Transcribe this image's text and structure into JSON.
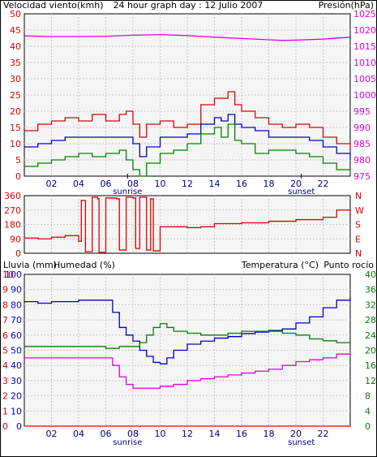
{
  "header": {
    "title": "24 hour graph day : 12 Julio 2007",
    "left_label": "Velocidad viento(kmh)",
    "right_label": "Presión(hPa)"
  },
  "colors": {
    "bg": "#f5f5f5",
    "grid": "#c8c8c8",
    "frame": "#000000",
    "wind_max": "#e00000",
    "wind_avg": "#0000c8",
    "wind_min": "#008000",
    "pressure": "#e000e0",
    "direction": "#e00000",
    "humidity": "#0000c8",
    "temperature": "#008000",
    "dewpoint": "#e000e0",
    "rain": "#e00000"
  },
  "x_ticks": [
    "02",
    "04",
    "06",
    "08",
    "10",
    "12",
    "14",
    "16",
    "18",
    "20",
    "22"
  ],
  "markers": {
    "sunrise": "sunrise",
    "sunset": "sunset",
    "sunrise_hour": 7.6,
    "sunset_hour": 20.4
  },
  "chart_data": [
    {
      "type": "line",
      "panel": "wind_pressure",
      "x_range": [
        0,
        24
      ],
      "ylim_left": [
        0,
        50
      ],
      "ylim_right": [
        975,
        1025
      ],
      "left_ticks": [
        "50",
        "45",
        "40",
        "35",
        "30",
        "25",
        "20",
        "15",
        "10",
        "5",
        "0"
      ],
      "right_ticks": [
        "1025",
        "1020",
        "1015",
        "1010",
        "1005",
        "1000",
        "995",
        "990",
        "985",
        "980",
        "975"
      ],
      "series": [
        {
          "key": "wind_max",
          "axis": "left",
          "x": [
            0,
            1,
            2,
            3,
            4,
            5,
            6,
            7,
            7.5,
            8,
            8.5,
            9,
            10,
            11,
            12,
            13,
            14,
            14.5,
            15,
            15.5,
            16,
            17,
            18,
            19,
            20,
            21,
            22,
            23,
            24
          ],
          "values": [
            14,
            16,
            17,
            18,
            17,
            19,
            17,
            19,
            20,
            16,
            12,
            16,
            17,
            15,
            16,
            22,
            24,
            24,
            26,
            22,
            20,
            18,
            16,
            15,
            16,
            15,
            12,
            10,
            8
          ]
        },
        {
          "key": "wind_avg",
          "axis": "left",
          "x": [
            0,
            1,
            2,
            3,
            4,
            5,
            6,
            7,
            7.5,
            8,
            8.5,
            9,
            10,
            11,
            12,
            13,
            14,
            14.5,
            15,
            15.5,
            16,
            17,
            18,
            19,
            20,
            21,
            22,
            23,
            24
          ],
          "values": [
            9,
            10,
            11,
            12,
            12,
            12,
            12,
            12,
            12,
            10,
            6,
            9,
            12,
            12,
            13,
            16,
            18,
            17,
            19,
            16,
            15,
            14,
            12,
            12,
            12,
            11,
            9,
            7,
            5
          ]
        },
        {
          "key": "wind_min",
          "axis": "left",
          "x": [
            0,
            1,
            2,
            3,
            4,
            5,
            6,
            7,
            7.5,
            8,
            8.5,
            9,
            10,
            11,
            12,
            13,
            14,
            14.5,
            15,
            15.5,
            16,
            17,
            18,
            19,
            20,
            21,
            22,
            23,
            24
          ],
          "values": [
            3,
            4,
            5,
            6,
            7,
            6,
            7,
            8,
            5,
            2,
            0,
            4,
            7,
            8,
            10,
            13,
            15,
            12,
            16,
            11,
            10,
            7,
            8,
            8,
            7,
            6,
            4,
            2,
            1
          ]
        },
        {
          "key": "pressure",
          "axis": "right",
          "x": [
            0,
            2,
            4,
            6,
            8,
            10,
            12,
            14,
            16,
            18,
            19,
            20,
            22,
            24
          ],
          "values": [
            1018.2,
            1018.0,
            1018.0,
            1018.1,
            1018.4,
            1018.6,
            1018.3,
            1017.8,
            1017.4,
            1017.0,
            1016.8,
            1016.9,
            1017.2,
            1017.8
          ]
        }
      ]
    },
    {
      "type": "line",
      "panel": "wind_direction",
      "x_range": [
        0,
        24
      ],
      "ylim": [
        0,
        360
      ],
      "left_ticks": [
        "360",
        "270",
        "180",
        "90",
        "0"
      ],
      "right_ticks": [
        "N",
        "W",
        "S",
        "E",
        "N"
      ],
      "series": [
        {
          "key": "direction",
          "x": [
            0,
            1,
            2,
            3,
            4,
            4.2,
            4.5,
            5,
            5.4,
            5.5,
            6,
            6.8,
            7,
            7.5,
            8,
            8.2,
            8.5,
            9,
            9.3,
            9.5,
            10,
            12,
            13,
            14,
            16,
            18,
            20,
            22,
            23,
            24
          ],
          "values": [
            95,
            90,
            100,
            110,
            75,
            330,
            10,
            350,
            340,
            5,
            345,
            340,
            20,
            350,
            345,
            30,
            350,
            20,
            340,
            15,
            165,
            160,
            165,
            185,
            190,
            200,
            210,
            225,
            270,
            245
          ]
        }
      ]
    },
    {
      "type": "line",
      "panel": "rain_humidity_temp",
      "x_range": [
        0,
        24
      ],
      "ylim_left_rain": [
        0,
        10
      ],
      "ylim_left_humidity": [
        0,
        100
      ],
      "ylim_right": [
        0,
        40
      ],
      "left_ticks_rain": [
        "10",
        "9",
        "8",
        "7",
        "6",
        "5",
        "4",
        "3",
        "2",
        "1",
        "0"
      ],
      "left_ticks_humidity": [
        "100",
        "90",
        "80",
        "70",
        "60",
        "50",
        "40",
        "30",
        "20",
        "10",
        "0"
      ],
      "right_ticks": [
        "40",
        "36",
        "32",
        "28",
        "24",
        "20",
        "16",
        "12",
        "8",
        "4",
        "0"
      ],
      "series": [
        {
          "key": "humidity",
          "axis": "left",
          "x": [
            0,
            1,
            2,
            3,
            4,
            5,
            6,
            6.5,
            7,
            7.5,
            8,
            8.5,
            9,
            9.5,
            10,
            10.5,
            11,
            12,
            13,
            14,
            15,
            16,
            17,
            18,
            19,
            20,
            21,
            22,
            23,
            24
          ],
          "values": [
            82,
            81,
            82,
            82,
            83,
            83,
            83,
            75,
            65,
            60,
            56,
            50,
            46,
            42,
            41,
            45,
            50,
            54,
            56,
            58,
            59,
            61,
            62,
            63,
            64,
            68,
            72,
            78,
            83,
            85
          ]
        },
        {
          "key": "temperature",
          "axis": "right",
          "x": [
            0,
            1,
            2,
            3,
            4,
            5,
            6,
            7,
            7.5,
            8,
            8.5,
            9,
            9.5,
            10,
            10.5,
            11,
            12,
            13,
            14,
            15,
            16,
            17,
            18,
            19,
            20,
            21,
            22,
            23,
            24
          ],
          "values": [
            21,
            21,
            21,
            21,
            21,
            21,
            20.5,
            21,
            21,
            21,
            22,
            24,
            26,
            27,
            26,
            25,
            24.5,
            24,
            24,
            24.5,
            25,
            25,
            25,
            24.5,
            24,
            23,
            22.5,
            22,
            22
          ]
        },
        {
          "key": "dewpoint",
          "axis": "right",
          "x": [
            0,
            1,
            2,
            3,
            4,
            5,
            6,
            6.5,
            7,
            7.5,
            8,
            8.5,
            9,
            10,
            11,
            12,
            13,
            14,
            15,
            16,
            17,
            18,
            19,
            20,
            21,
            22,
            23,
            24
          ],
          "values": [
            18,
            18,
            18,
            18,
            18,
            18,
            18,
            16,
            13,
            11,
            10,
            10,
            10,
            10.5,
            11,
            12,
            12.5,
            13,
            13.5,
            14,
            14.5,
            15,
            16,
            17,
            17.5,
            18,
            19,
            19.5
          ]
        },
        {
          "key": "rain",
          "axis": "left_rain",
          "x": [
            0,
            24
          ],
          "values": [
            0,
            0
          ]
        }
      ]
    }
  ],
  "panel3_labels": {
    "rain": "Lluvia (mm)",
    "humidity": "Humedad (%)",
    "temperature": "Temperatura (°C)",
    "dewpoint": "Punto rocío"
  }
}
